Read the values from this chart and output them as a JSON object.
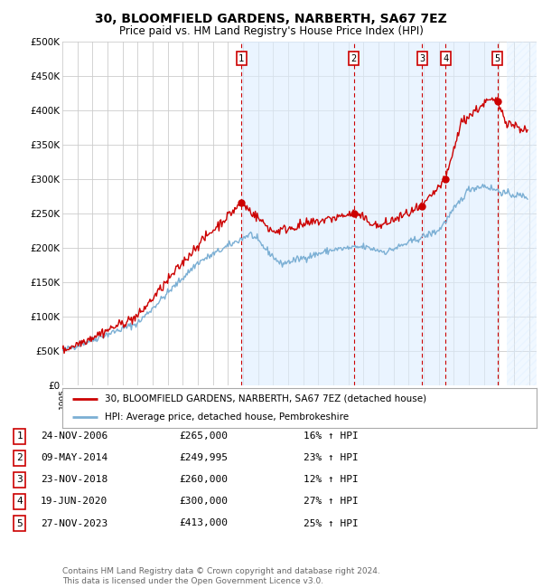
{
  "title1": "30, BLOOMFIELD GARDENS, NARBERTH, SA67 7EZ",
  "title2": "Price paid vs. HM Land Registry's House Price Index (HPI)",
  "ylabel_ticks": [
    "£0",
    "£50K",
    "£100K",
    "£150K",
    "£200K",
    "£250K",
    "£300K",
    "£350K",
    "£400K",
    "£450K",
    "£500K"
  ],
  "ytick_vals": [
    0,
    50000,
    100000,
    150000,
    200000,
    250000,
    300000,
    350000,
    400000,
    450000,
    500000
  ],
  "ylim": [
    0,
    500000
  ],
  "xlim_start": 1995.0,
  "xlim_end": 2026.5,
  "legend_line1": "30, BLOOMFIELD GARDENS, NARBERTH, SA67 7EZ (detached house)",
  "legend_line2": "HPI: Average price, detached house, Pembrokeshire",
  "legend_color1": "#cc0000",
  "legend_color2": "#7bafd4",
  "sale_dates_year": [
    2006.9,
    2014.36,
    2018.9,
    2020.47,
    2023.9
  ],
  "sale_prices": [
    265000,
    249995,
    260000,
    300000,
    413000
  ],
  "sale_labels": [
    "1",
    "2",
    "3",
    "4",
    "5"
  ],
  "table_rows": [
    [
      "1",
      "24-NOV-2006",
      "£265,000",
      "16% ↑ HPI"
    ],
    [
      "2",
      "09-MAY-2014",
      "£249,995",
      "23% ↑ HPI"
    ],
    [
      "3",
      "23-NOV-2018",
      "£260,000",
      "12% ↑ HPI"
    ],
    [
      "4",
      "19-JUN-2020",
      "£300,000",
      "27% ↑ HPI"
    ],
    [
      "5",
      "27-NOV-2023",
      "£413,000",
      "25% ↑ HPI"
    ]
  ],
  "footnote": "Contains HM Land Registry data © Crown copyright and database right 2024.\nThis data is licensed under the Open Government Licence v3.0.",
  "bg_color": "#ffffff",
  "plot_bg_color": "#ffffff",
  "grid_color": "#cccccc",
  "vline_color": "#cc0000",
  "sale_marker_color": "#cc0000",
  "shade_color": "#ddeeff",
  "future_shade_color": "#ddeeff"
}
